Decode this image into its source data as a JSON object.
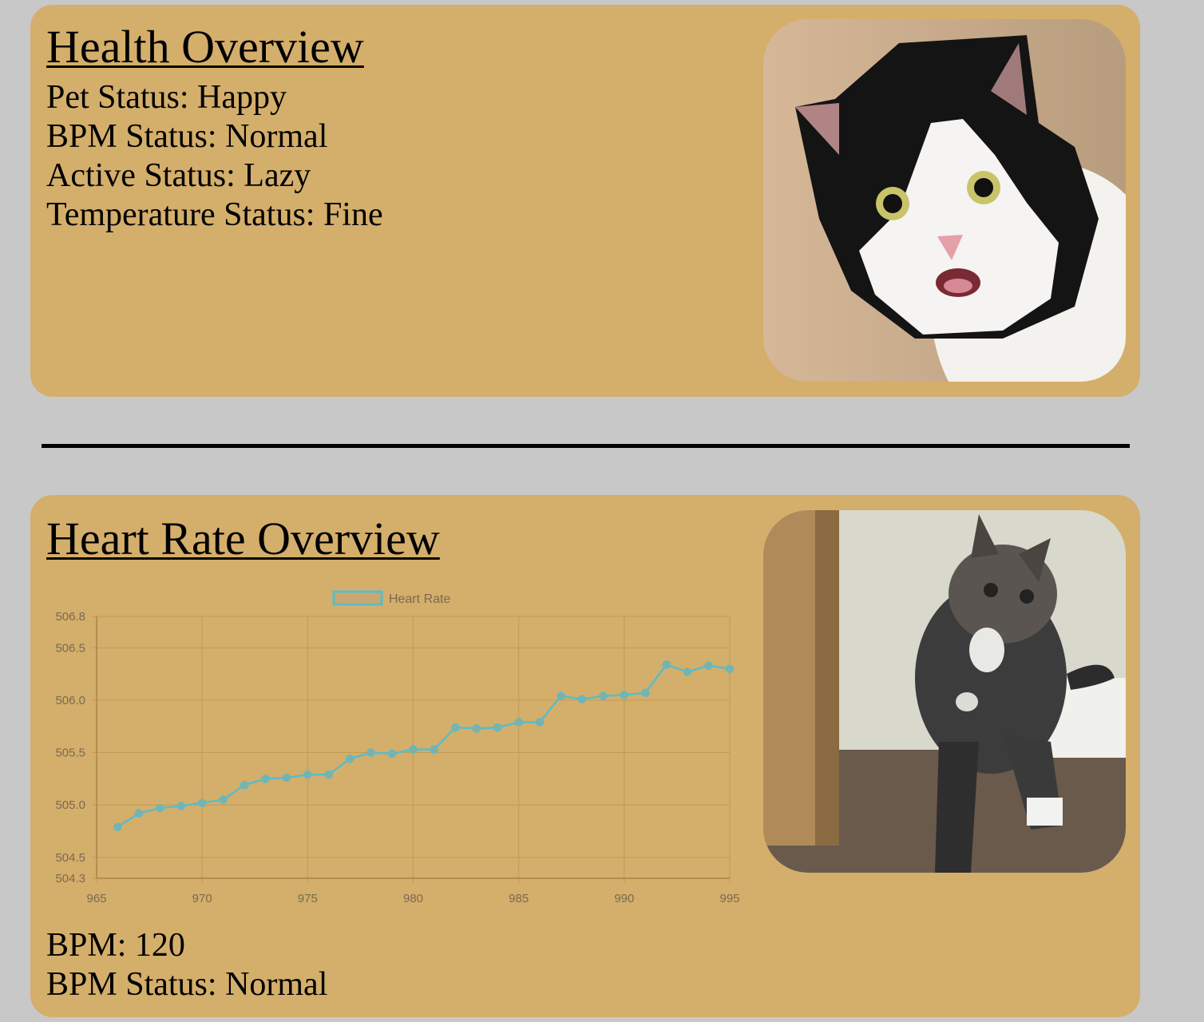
{
  "health": {
    "title": "Health Overview",
    "pet_status": "Pet Status: Happy",
    "bpm_status": "BPM Status: Normal",
    "active_status": "Active Status: Lazy",
    "temperature_status": "Temperature Status: Fine"
  },
  "heart": {
    "title": "Heart Rate Overview",
    "bpm": "BPM: 120",
    "bpm_status": "BPM Status: Normal"
  },
  "colors": {
    "card": "#d4ae6b",
    "background": "#c8c8c8",
    "line": "#5bbcc8",
    "grid": "#c49a55",
    "tick": "#7a6a50"
  },
  "chart_data": {
    "type": "line",
    "legend": "top",
    "grid": true,
    "x": [
      966,
      967,
      968,
      969,
      970,
      971,
      972,
      973,
      974,
      975,
      976,
      977,
      978,
      979,
      980,
      981,
      982,
      983,
      984,
      985,
      986,
      987,
      988,
      989,
      990,
      991,
      992,
      993,
      994,
      995
    ],
    "series": [
      {
        "name": "Heart Rate",
        "values": [
          504.79,
          504.92,
          504.97,
          504.99,
          505.02,
          505.05,
          505.19,
          505.25,
          505.26,
          505.29,
          505.29,
          505.44,
          505.5,
          505.49,
          505.53,
          505.53,
          505.74,
          505.73,
          505.74,
          505.79,
          505.79,
          506.04,
          506.01,
          506.04,
          506.05,
          506.07,
          506.34,
          506.27,
          506.33,
          506.3
        ]
      }
    ],
    "xlim": [
      965,
      995
    ],
    "ylim": [
      504.3,
      506.8
    ],
    "xticks": [
      "965",
      "970",
      "975",
      "980",
      "985",
      "990",
      "995"
    ],
    "yticks": [
      "504.3",
      "504.5",
      "505.0",
      "505.5",
      "506.0",
      "506.5",
      "506.8"
    ]
  }
}
